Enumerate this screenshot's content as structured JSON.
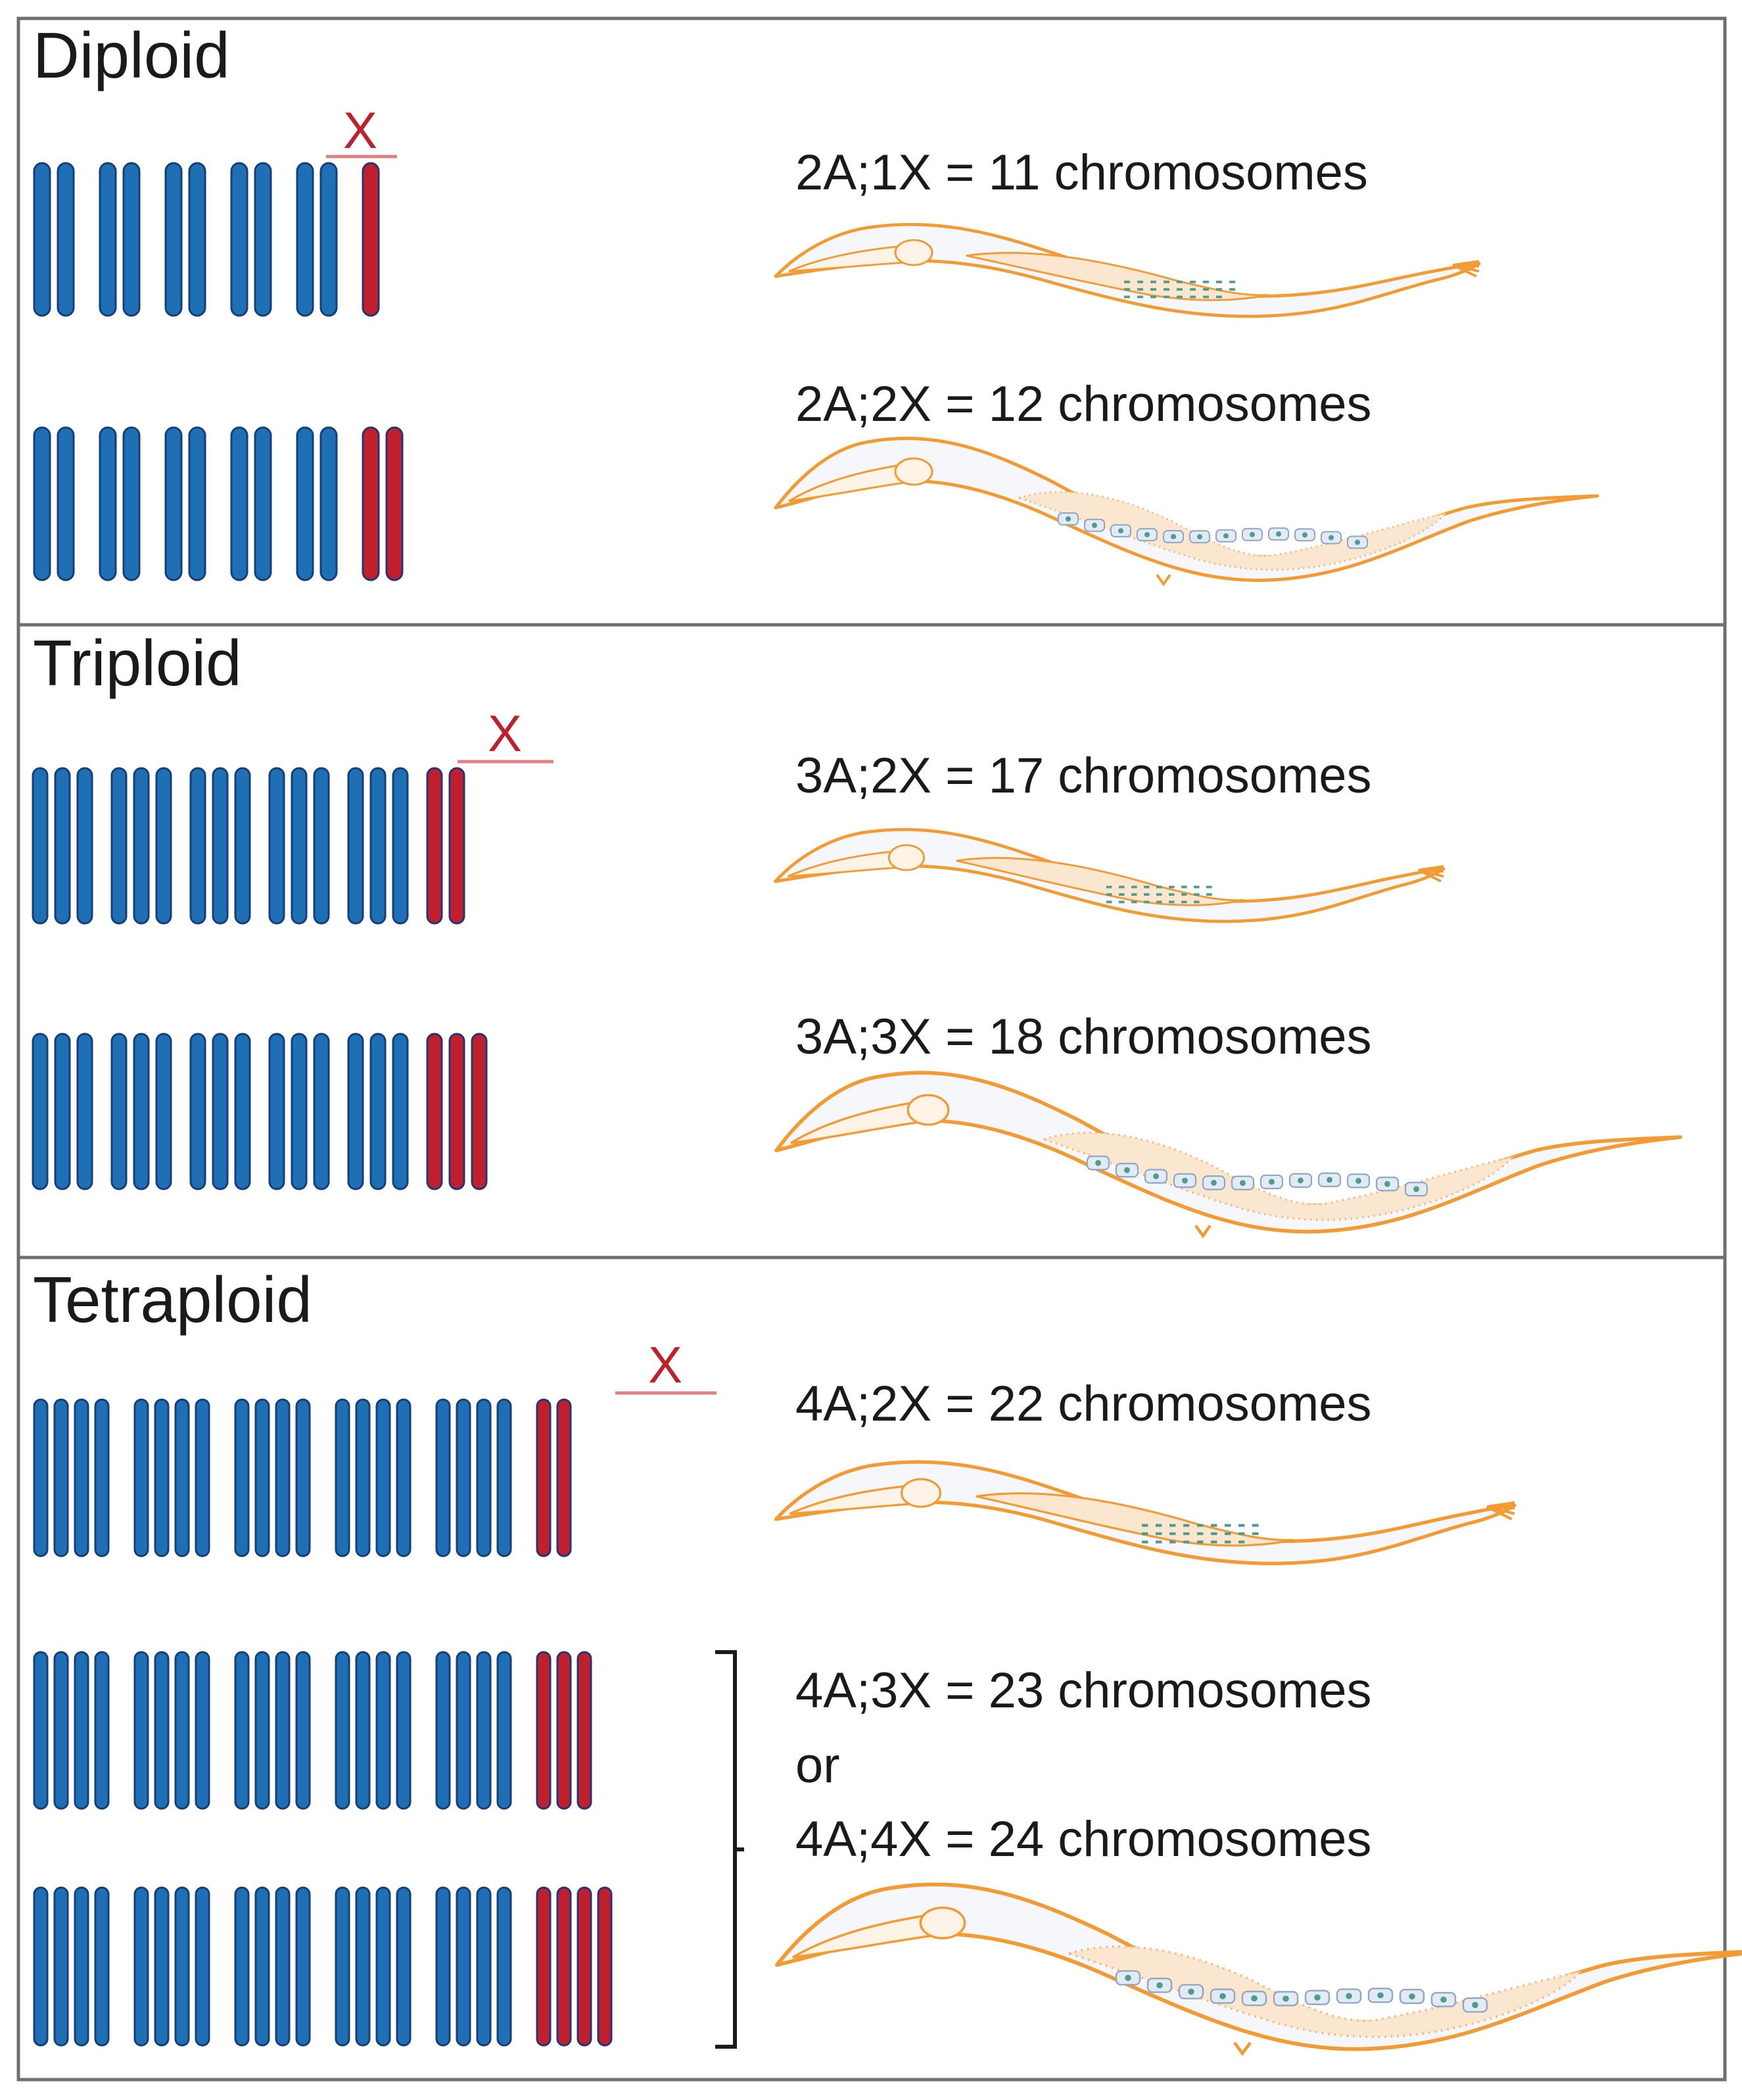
{
  "figure": {
    "colors": {
      "autosome": "#1f6fb5",
      "autosome_outline": "#143f7a",
      "x_chromosome": "#c0202c",
      "x_outline": "#26337a",
      "worm_outline": "#f39a32",
      "worm_fill": "#f6f7fb",
      "worm_gut": "#e7ecf8",
      "gonad": "#fbe6cf",
      "cells": "#4d9c8c",
      "panel_border": "#6f6f6f"
    },
    "x_marker_label": "X",
    "panels": [
      {
        "title": "Diploid",
        "rows": [
          {
            "label": "2A;1X = 11 chromosomes",
            "ploidy": 2,
            "x_count": 1,
            "marked": true,
            "sex": "male"
          },
          {
            "label": "2A;2X = 12 chromosomes",
            "ploidy": 2,
            "x_count": 2,
            "marked": false,
            "sex": "hermaphrodite"
          }
        ]
      },
      {
        "title": "Triploid",
        "rows": [
          {
            "label": "3A;2X = 17 chromosomes",
            "ploidy": 3,
            "x_count": 2,
            "marked": true,
            "sex": "male"
          },
          {
            "label": "3A;3X = 18 chromosomes",
            "ploidy": 3,
            "x_count": 3,
            "marked": false,
            "sex": "hermaphrodite"
          }
        ]
      },
      {
        "title": "Tetraploid",
        "rows": [
          {
            "label": "4A;2X = 22 chromosomes",
            "ploidy": 4,
            "x_count": 2,
            "marked": true,
            "sex": "male"
          },
          {
            "ploidy": 4,
            "x_count": 3,
            "marked": false,
            "sex": "hermaphrodite"
          },
          {
            "ploidy": 4,
            "x_count": 4,
            "marked": false,
            "sex": "hermaphrodite"
          }
        ],
        "grouped_labels": [
          "4A;3X = 23 chromosomes",
          "or",
          "4A;4X = 24 chromosomes"
        ]
      }
    ]
  }
}
